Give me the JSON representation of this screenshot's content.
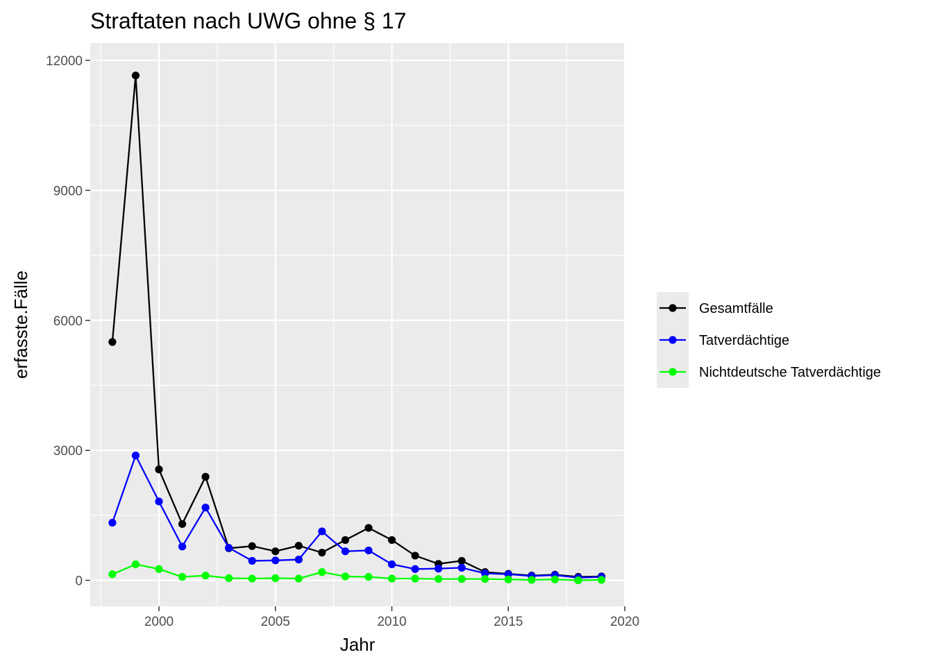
{
  "chart_data": {
    "type": "line",
    "title": "Straftaten nach UWG ohne § 17",
    "xlabel": "Jahr",
    "ylabel": "erfasste.Fälle",
    "xlim": [
      1997.05,
      2020.0
    ],
    "ylim": [
      -600,
      12400
    ],
    "x_ticks": [
      2000,
      2005,
      2010,
      2015,
      2020
    ],
    "x_tick_labels": [
      "2000",
      "2005",
      "2010",
      "2015",
      "2020"
    ],
    "y_ticks": [
      0,
      3000,
      6000,
      9000,
      12000
    ],
    "y_tick_labels": [
      "0",
      "3000",
      "6000",
      "9000",
      "12000"
    ],
    "grid": true,
    "legend_position": "right",
    "x": [
      1998,
      1999,
      2000,
      2001,
      2002,
      2003,
      2004,
      2005,
      2006,
      2007,
      2008,
      2009,
      2010,
      2011,
      2012,
      2013,
      2014,
      2015,
      2016,
      2017,
      2018,
      2019
    ],
    "series": [
      {
        "name": "Gesamtfälle",
        "color": "#000000",
        "values": [
          5500,
          11650,
          2560,
          1300,
          2390,
          740,
          790,
          670,
          800,
          640,
          930,
          1210,
          930,
          570,
          380,
          450,
          190,
          150,
          110,
          130,
          80,
          90
        ]
      },
      {
        "name": "Tatverdächtige",
        "color": "#0000ff",
        "values": [
          1330,
          2880,
          1820,
          780,
          1680,
          750,
          450,
          460,
          480,
          1130,
          670,
          690,
          370,
          260,
          270,
          290,
          160,
          140,
          100,
          120,
          60,
          80
        ]
      },
      {
        "name": "Nichtdeutsche Tatverdächtige",
        "color": "#00ff00",
        "values": [
          140,
          370,
          260,
          80,
          110,
          50,
          40,
          50,
          40,
          190,
          90,
          80,
          40,
          40,
          30,
          30,
          30,
          20,
          10,
          20,
          0,
          10
        ]
      }
    ]
  }
}
